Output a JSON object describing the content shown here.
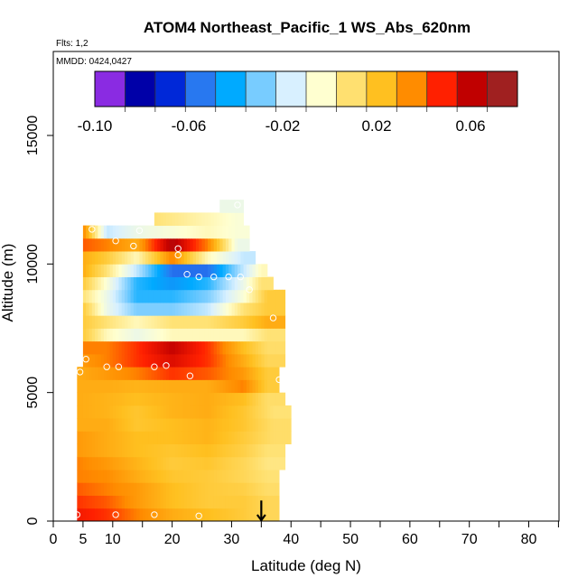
{
  "chart_data": {
    "type": "heatmap",
    "title": "ATOM4 Northeast_Pacific_1 WS_Abs_620nm",
    "flights_note": "Flts: 1,2",
    "date_note": "MMDD: 0424,0427",
    "xlabel": "Latitude (deg N)",
    "ylabel": "Altitude (m)",
    "xlim": [
      0,
      85
    ],
    "ylim": [
      0,
      17500
    ],
    "x_ticks": [
      0,
      5,
      10,
      20,
      30,
      40,
      50,
      60,
      70,
      80
    ],
    "y_ticks": [
      0,
      5000,
      10000,
      15000
    ],
    "colorbar": {
      "range": [
        -0.1,
        0.08
      ],
      "tick_values": [
        -0.1,
        -0.06,
        -0.02,
        0.02,
        0.06
      ],
      "tick_labels": [
        "-0.10",
        "-0.06",
        "-0.02",
        "0.02",
        "0.06"
      ],
      "colors": [
        "#8a2be2",
        "#0000a8",
        "#0028d8",
        "#2878f0",
        "#00aaff",
        "#78ccff",
        "#d8f0ff",
        "#ffffd0",
        "#ffe070",
        "#ffc020",
        "#ff8c00",
        "#ff2000",
        "#c00000",
        "#a02020"
      ]
    },
    "cell_height_m": 500,
    "rows": [
      {
        "alt": 250,
        "lat_min": 4,
        "lat_max": 38,
        "values": [
          [
            4,
            0.055
          ],
          [
            9,
            0.05
          ],
          [
            14,
            0.04
          ],
          [
            20,
            0.03
          ],
          [
            26,
            0.025
          ],
          [
            32,
            0.02
          ],
          [
            36,
            0.015
          ]
        ]
      },
      {
        "alt": 750,
        "lat_min": 4,
        "lat_max": 38,
        "values": [
          [
            4,
            0.05
          ],
          [
            9,
            0.045
          ],
          [
            14,
            0.035
          ],
          [
            20,
            0.025
          ],
          [
            26,
            0.02
          ],
          [
            32,
            0.02
          ],
          [
            36,
            0.015
          ]
        ]
      },
      {
        "alt": 1250,
        "lat_min": 4,
        "lat_max": 38,
        "values": [
          [
            4,
            0.045
          ],
          [
            9,
            0.04
          ],
          [
            14,
            0.035
          ],
          [
            20,
            0.025
          ],
          [
            26,
            0.02
          ],
          [
            32,
            0.018
          ],
          [
            36,
            0.012
          ]
        ]
      },
      {
        "alt": 1750,
        "lat_min": 4,
        "lat_max": 38,
        "values": [
          [
            4,
            0.04
          ],
          [
            9,
            0.038
          ],
          [
            14,
            0.03
          ],
          [
            20,
            0.022
          ],
          [
            26,
            0.02
          ],
          [
            32,
            0.015
          ],
          [
            36,
            0.01
          ]
        ]
      },
      {
        "alt": 2250,
        "lat_min": 4,
        "lat_max": 39,
        "values": [
          [
            4,
            0.04
          ],
          [
            9,
            0.035
          ],
          [
            14,
            0.028
          ],
          [
            20,
            0.02
          ],
          [
            26,
            0.022
          ],
          [
            32,
            0.015
          ],
          [
            36,
            0.008
          ]
        ]
      },
      {
        "alt": 2750,
        "lat_min": 4,
        "lat_max": 39,
        "values": [
          [
            4,
            0.035
          ],
          [
            9,
            0.03
          ],
          [
            14,
            0.025
          ],
          [
            20,
            0.022
          ],
          [
            26,
            0.025
          ],
          [
            32,
            0.018
          ],
          [
            36,
            0.01
          ]
        ]
      },
      {
        "alt": 3250,
        "lat_min": 4,
        "lat_max": 40,
        "values": [
          [
            4,
            0.035
          ],
          [
            9,
            0.03
          ],
          [
            14,
            0.025
          ],
          [
            20,
            0.025
          ],
          [
            26,
            0.028
          ],
          [
            32,
            0.02
          ],
          [
            37,
            0.012
          ]
        ]
      },
      {
        "alt": 3750,
        "lat_min": 4,
        "lat_max": 40,
        "values": [
          [
            4,
            0.03
          ],
          [
            9,
            0.03
          ],
          [
            14,
            0.022
          ],
          [
            20,
            0.025
          ],
          [
            26,
            0.028
          ],
          [
            32,
            0.022
          ],
          [
            37,
            0.012
          ]
        ]
      },
      {
        "alt": 4250,
        "lat_min": 4,
        "lat_max": 40,
        "values": [
          [
            4,
            0.03
          ],
          [
            9,
            0.028
          ],
          [
            14,
            0.022
          ],
          [
            20,
            0.028
          ],
          [
            26,
            0.03
          ],
          [
            32,
            0.022
          ],
          [
            37,
            0.01
          ]
        ]
      },
      {
        "alt": 4750,
        "lat_min": 4,
        "lat_max": 39,
        "values": [
          [
            4,
            0.03
          ],
          [
            9,
            0.028
          ],
          [
            14,
            0.025
          ],
          [
            20,
            0.028
          ],
          [
            26,
            0.03
          ],
          [
            32,
            0.025
          ],
          [
            36,
            0.012
          ]
        ]
      },
      {
        "alt": 5250,
        "lat_min": 4,
        "lat_max": 38,
        "values": [
          [
            4,
            0.03
          ],
          [
            9,
            0.03
          ],
          [
            14,
            0.028
          ],
          [
            20,
            0.03
          ],
          [
            26,
            0.03
          ],
          [
            32,
            0.04
          ],
          [
            36,
            0.02
          ]
        ]
      },
      {
        "alt": 5750,
        "lat_min": 4,
        "lat_max": 38,
        "values": [
          [
            4,
            0.03
          ],
          [
            9,
            0.035
          ],
          [
            14,
            0.04
          ],
          [
            20,
            0.05
          ],
          [
            26,
            0.045
          ],
          [
            32,
            0.035
          ],
          [
            36,
            0.02
          ]
        ]
      },
      {
        "alt": 6250,
        "lat_min": 5,
        "lat_max": 39,
        "values": [
          [
            5,
            0.035
          ],
          [
            9,
            0.04
          ],
          [
            14,
            0.05
          ],
          [
            20,
            0.06
          ],
          [
            26,
            0.05
          ],
          [
            32,
            0.03
          ],
          [
            36,
            0.015
          ]
        ]
      },
      {
        "alt": 6750,
        "lat_min": 5,
        "lat_max": 39,
        "values": [
          [
            5,
            0.04
          ],
          [
            9,
            0.04
          ],
          [
            14,
            0.05
          ],
          [
            20,
            0.065
          ],
          [
            26,
            0.05
          ],
          [
            32,
            0.025
          ],
          [
            36,
            0.012
          ]
        ]
      },
      {
        "alt": 7250,
        "lat_min": 5,
        "lat_max": 39,
        "values": [
          [
            5,
            0.02
          ],
          [
            9,
            0.0
          ],
          [
            14,
            -0.01
          ],
          [
            20,
            0.0
          ],
          [
            26,
            0.0
          ],
          [
            32,
            0.0
          ],
          [
            36,
            0.01
          ]
        ]
      },
      {
        "alt": 7750,
        "lat_min": 5,
        "lat_max": 39,
        "values": [
          [
            5,
            0.02
          ],
          [
            9,
            0.01
          ],
          [
            14,
            0.0
          ],
          [
            20,
            0.01
          ],
          [
            26,
            0.01
          ],
          [
            32,
            0.02
          ],
          [
            36,
            0.03
          ]
        ]
      },
      {
        "alt": 8250,
        "lat_min": 5,
        "lat_max": 39,
        "values": [
          [
            5,
            0.02
          ],
          [
            9,
            -0.01
          ],
          [
            14,
            -0.03
          ],
          [
            20,
            -0.03
          ],
          [
            26,
            -0.02
          ],
          [
            32,
            0.01
          ],
          [
            36,
            0.02
          ]
        ]
      },
      {
        "alt": 8750,
        "lat_min": 5,
        "lat_max": 39,
        "values": [
          [
            5,
            0.01
          ],
          [
            9,
            -0.01
          ],
          [
            14,
            -0.04
          ],
          [
            20,
            -0.04
          ],
          [
            26,
            -0.03
          ],
          [
            32,
            -0.005
          ],
          [
            36,
            0.02
          ]
        ]
      },
      {
        "alt": 9250,
        "lat_min": 5,
        "lat_max": 37,
        "values": [
          [
            5,
            0.02
          ],
          [
            9,
            -0.005
          ],
          [
            14,
            -0.04
          ],
          [
            20,
            -0.05
          ],
          [
            26,
            -0.04
          ],
          [
            32,
            -0.01
          ],
          [
            35,
            0.01
          ]
        ]
      },
      {
        "alt": 9750,
        "lat_min": 5,
        "lat_max": 36,
        "values": [
          [
            5,
            0.03
          ],
          [
            9,
            0.01
          ],
          [
            14,
            -0.02
          ],
          [
            20,
            -0.06
          ],
          [
            26,
            -0.06
          ],
          [
            32,
            -0.02
          ],
          [
            35,
            0.0
          ]
        ]
      },
      {
        "alt": 10250,
        "lat_min": 5,
        "lat_max": 34,
        "values": [
          [
            5,
            0.03
          ],
          [
            9,
            0.02
          ],
          [
            14,
            0.0
          ],
          [
            20,
            0.04
          ],
          [
            26,
            0.0
          ],
          [
            32,
            -0.02
          ]
        ]
      },
      {
        "alt": 10750,
        "lat_min": 5,
        "lat_max": 33,
        "values": [
          [
            5,
            0.045
          ],
          [
            9,
            0.04
          ],
          [
            14,
            0.03
          ],
          [
            20,
            0.07
          ],
          [
            26,
            0.04
          ],
          [
            31,
            -0.01
          ]
        ]
      },
      {
        "alt": 11250,
        "lat_min": 5,
        "lat_max": 33,
        "values": [
          [
            5,
            0.04
          ],
          [
            9,
            -0.02
          ],
          [
            14,
            -0.01
          ],
          [
            20,
            -0.005
          ],
          [
            26,
            0.0
          ],
          [
            31,
            -0.005
          ]
        ]
      },
      {
        "alt": 11750,
        "lat_min": 17,
        "lat_max": 32,
        "values": [
          [
            17,
            0.01
          ],
          [
            22,
            0.005
          ],
          [
            27,
            0.0
          ],
          [
            31,
            -0.005
          ]
        ]
      },
      {
        "alt": 12250,
        "lat_min": 28,
        "lat_max": 32,
        "values": [
          [
            28,
            -0.01
          ],
          [
            31,
            -0.01
          ]
        ]
      }
    ],
    "flight_points": [
      {
        "lat": 4,
        "alt": 250
      },
      {
        "lat": 10.5,
        "alt": 250
      },
      {
        "lat": 17,
        "alt": 250
      },
      {
        "lat": 24.5,
        "alt": 200
      },
      {
        "lat": 4.5,
        "alt": 5800
      },
      {
        "lat": 9,
        "alt": 6000
      },
      {
        "lat": 17,
        "alt": 6000
      },
      {
        "lat": 19,
        "alt": 6050
      },
      {
        "lat": 23,
        "alt": 5650
      },
      {
        "lat": 38,
        "alt": 5500
      },
      {
        "lat": 5.5,
        "alt": 6300
      },
      {
        "lat": 11,
        "alt": 6000
      },
      {
        "lat": 37,
        "alt": 7900
      },
      {
        "lat": 33,
        "alt": 9000
      },
      {
        "lat": 22.5,
        "alt": 9600
      },
      {
        "lat": 24.5,
        "alt": 9500
      },
      {
        "lat": 27,
        "alt": 9500
      },
      {
        "lat": 29.5,
        "alt": 9500
      },
      {
        "lat": 31.5,
        "alt": 9500
      },
      {
        "lat": 21,
        "alt": 10350
      },
      {
        "lat": 21,
        "alt": 10600
      },
      {
        "lat": 13.5,
        "alt": 10700
      },
      {
        "lat": 10.5,
        "alt": 10900
      },
      {
        "lat": 14.5,
        "alt": 11300
      },
      {
        "lat": 6.5,
        "alt": 11350
      },
      {
        "lat": 31,
        "alt": 12300
      }
    ],
    "arrow": {
      "lat": 35,
      "alt_top": 800,
      "alt_bottom": 0
    }
  }
}
